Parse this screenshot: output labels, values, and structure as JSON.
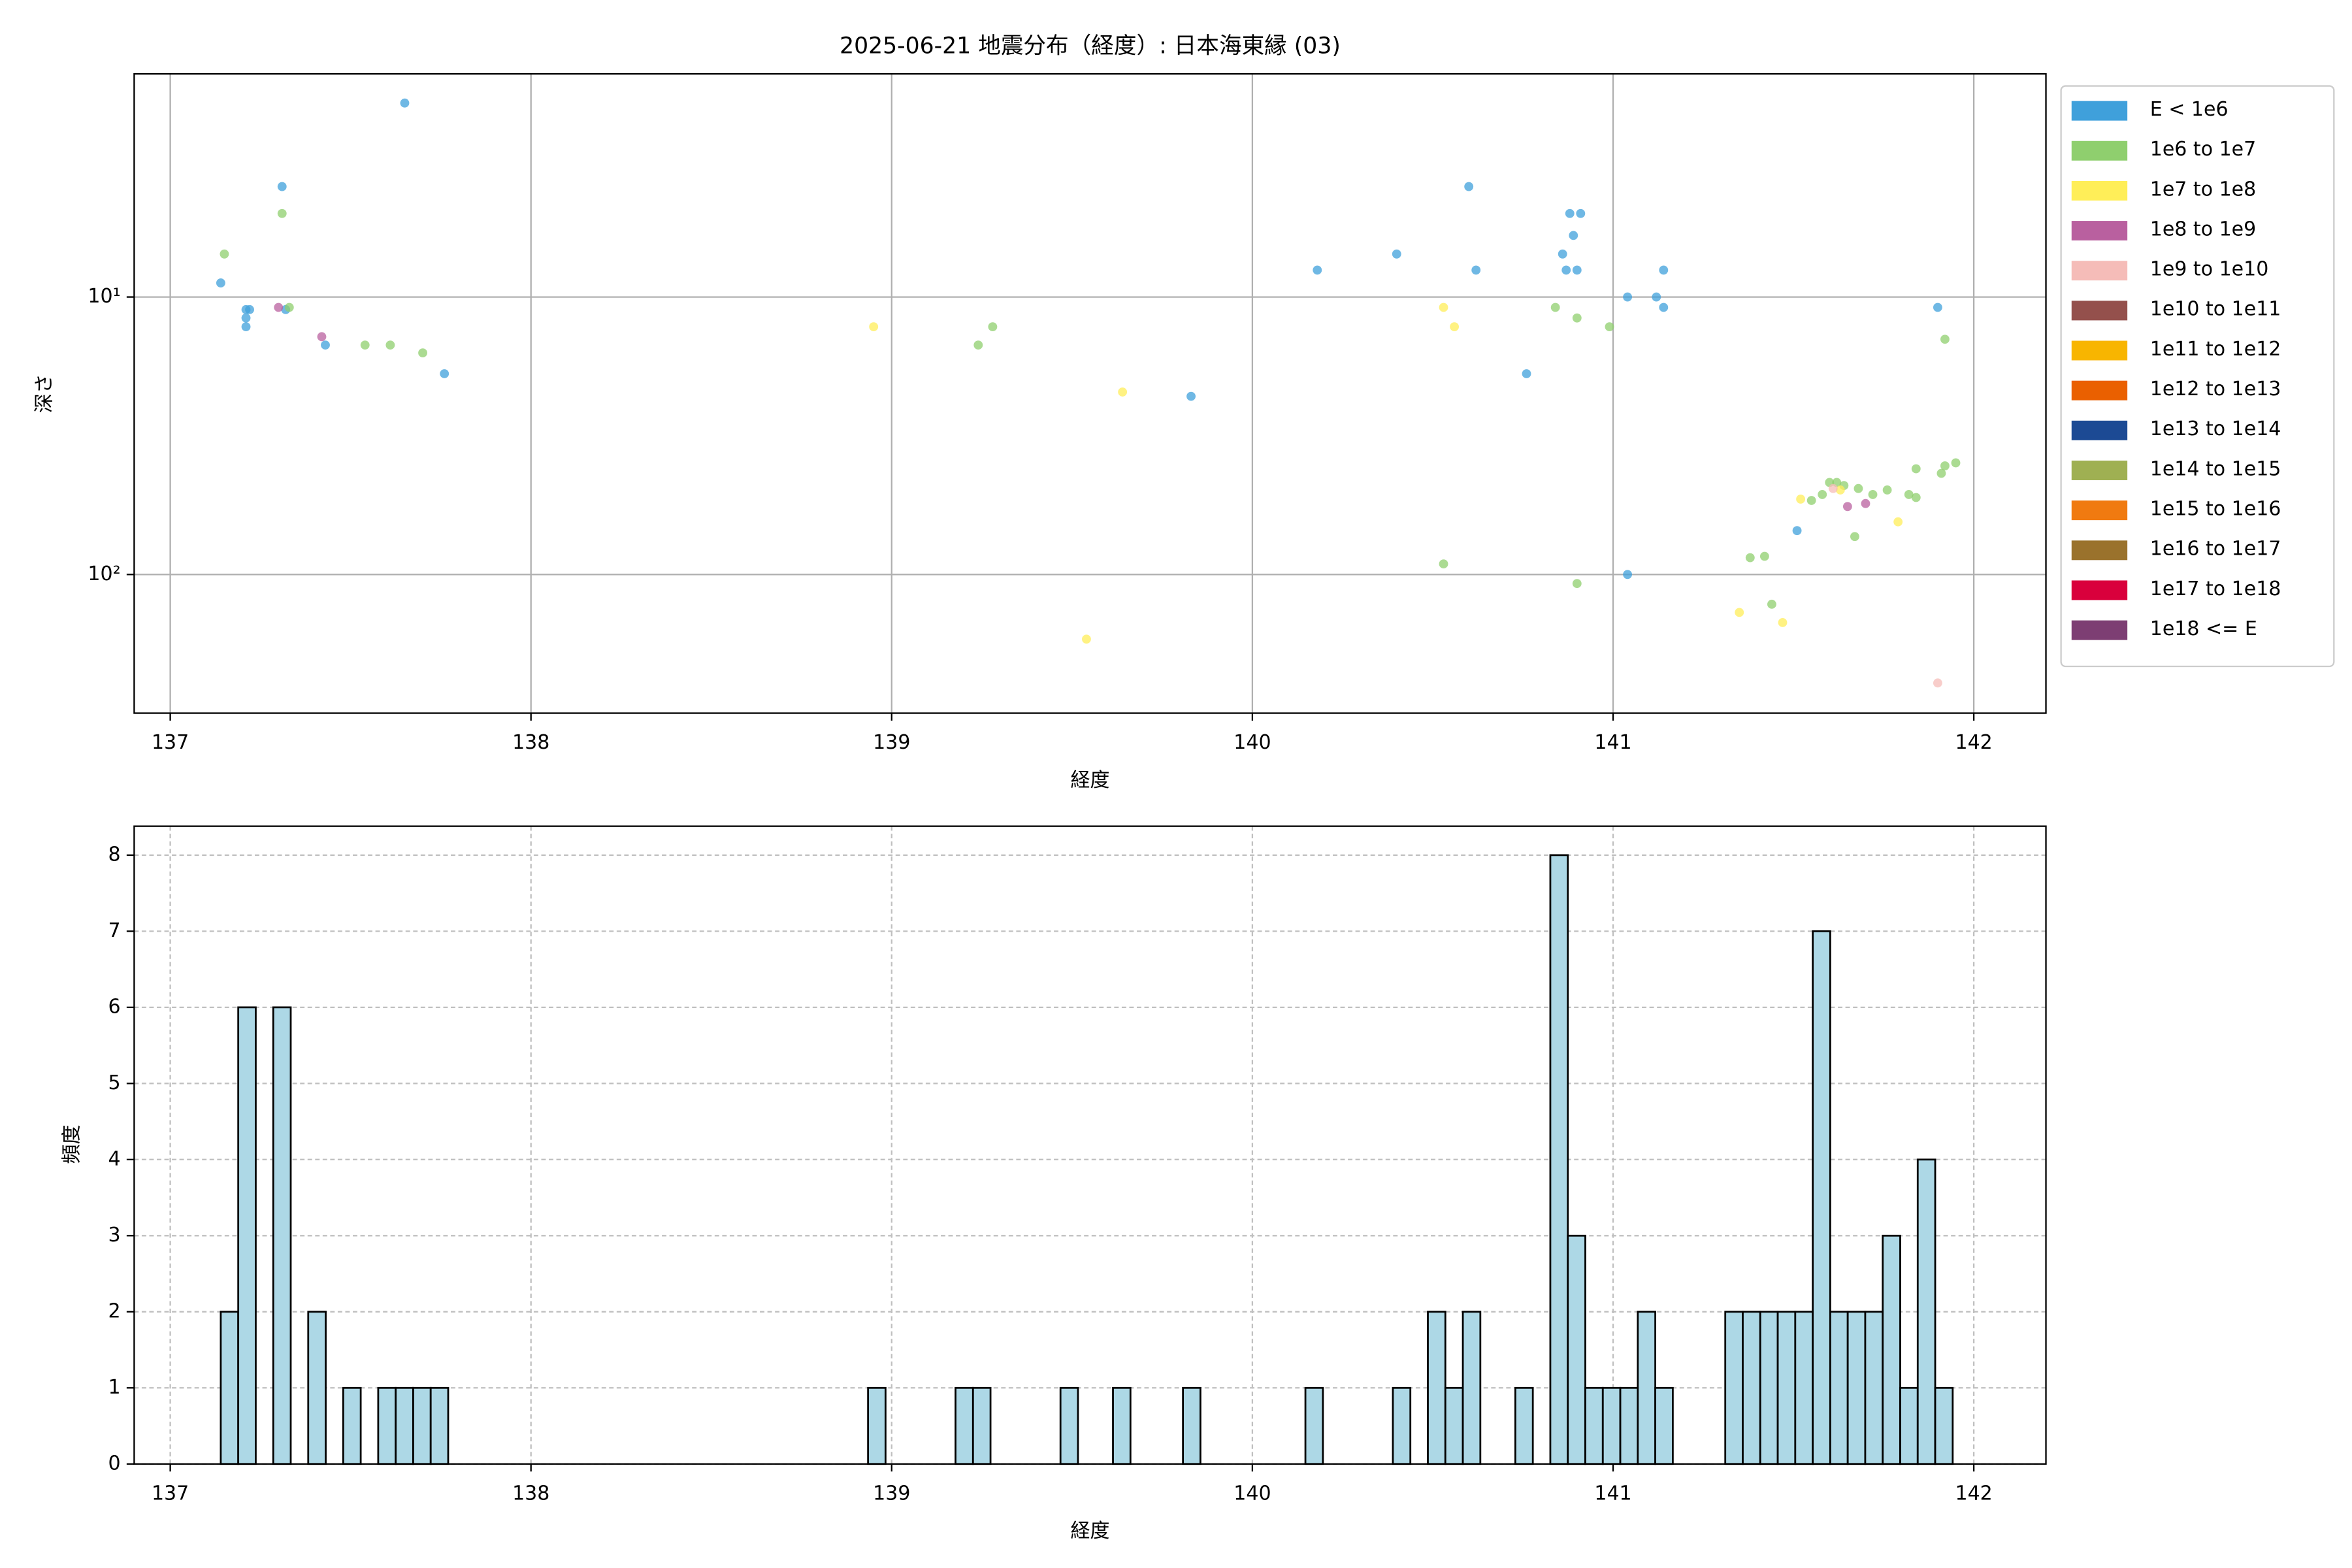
{
  "chart_data": [
    {
      "type": "scatter",
      "title": "2025-06-21 地震分布（経度）: 日本海東縁 (03)",
      "xlabel": "経度",
      "ylabel": "深さ",
      "xlim": [
        136.9,
        142.2
      ],
      "xticks": [
        137,
        138,
        139,
        140,
        141,
        142
      ],
      "yscale": "log",
      "y_inverted": true,
      "ylim": [
        1.57,
        316
      ],
      "yticks": [
        {
          "value": 10,
          "label": "10¹"
        },
        {
          "value": 100,
          "label": "10²"
        }
      ],
      "grid": true,
      "legend": "outside right",
      "series": [
        {
          "name": "E < 1e6",
          "color": "#3fa0db",
          "x": [
            137.14,
            137.21,
            137.21,
            137.21,
            137.22,
            137.31,
            137.32,
            137.43,
            137.65,
            137.76,
            139.83,
            140.18,
            140.4,
            140.6,
            140.62,
            140.76,
            140.86,
            140.87,
            140.9,
            140.89,
            140.88,
            140.91,
            141.04,
            141.04,
            141.12,
            141.14,
            141.14,
            141.51,
            141.9
          ],
          "values": [
            8.9,
            11.1,
            11.9,
            12.8,
            11.1,
            4.0,
            11.1,
            14.9,
            2.0,
            18.9,
            22.8,
            8.0,
            7.0,
            4.0,
            8.0,
            18.9,
            7.0,
            8.0,
            8.0,
            6.0,
            5.0,
            5.0,
            10,
            100,
            10,
            8.0,
            10.9,
            69.5,
            10.9
          ]
        },
        {
          "name": "1e6 to 1e7",
          "color": "#8fcf6e",
          "x": [
            137.15,
            137.31,
            137.33,
            137.54,
            137.61,
            137.7,
            139.24,
            139.28,
            140.53,
            140.84,
            140.9,
            140.9,
            140.99,
            141.38,
            141.42,
            141.44,
            141.55,
            141.58,
            141.6,
            141.62,
            141.64,
            141.68,
            141.72,
            141.67,
            141.76,
            141.82,
            141.84,
            141.84,
            141.91,
            141.92,
            141.95,
            141.92
          ],
          "values": [
            7.0,
            5.0,
            10.9,
            14.9,
            14.9,
            15.9,
            14.9,
            12.8,
            91.6,
            10.9,
            11.9,
            107.8,
            12.8,
            87.0,
            86,
            128,
            54.1,
            51.5,
            46.6,
            46.6,
            47.8,
            49,
            51.5,
            73,
            49.6,
            51.5,
            52.8,
            41.6,
            43.2,
            40.6,
            39.6,
            14.2
          ]
        },
        {
          "name": "1e7 to 1e8",
          "color": "#ffee58",
          "x": [
            138.95,
            139.64,
            139.54,
            140.53,
            140.56,
            141.52,
            141.63,
            141.79,
            141.35,
            141.47
          ],
          "values": [
            12.8,
            22,
            171,
            10.9,
            12.8,
            53.5,
            49.6,
            64.6,
            137,
            149
          ]
        },
        {
          "name": "1e8 to 1e9",
          "color": "#b9609f",
          "x": [
            137.3,
            137.42,
            141.65,
            141.7
          ],
          "values": [
            10.9,
            13.9,
            56.9,
            55.5
          ]
        },
        {
          "name": "1e9 to 1e10",
          "color": "#f5bcb8",
          "x": [
            141.9,
            141.61
          ],
          "values": [
            246,
            49
          ]
        },
        {
          "name": "1e10 to 1e11",
          "color": "#94504c",
          "x": [],
          "values": []
        },
        {
          "name": "1e11 to 1e12",
          "color": "#f8b500",
          "x": [],
          "values": []
        },
        {
          "name": "1e12 to 1e13",
          "color": "#ea6000",
          "x": [],
          "values": []
        },
        {
          "name": "1e13 to 1e14",
          "color": "#1c4a94",
          "x": [],
          "values": []
        },
        {
          "name": "1e14 to 1e15",
          "color": "#9fb052",
          "x": [],
          "values": []
        },
        {
          "name": "1e15 to 1e16",
          "color": "#f07a10",
          "x": [],
          "values": []
        },
        {
          "name": "1e16 to 1e17",
          "color": "#9a722c",
          "x": [],
          "values": []
        },
        {
          "name": "1e17 to 1e18",
          "color": "#d9003c",
          "x": [],
          "values": []
        },
        {
          "name": "1e18 <= E",
          "color": "#7d3e73",
          "x": [],
          "values": []
        }
      ]
    },
    {
      "type": "histogram",
      "xlabel": "経度",
      "ylabel": "頻度",
      "xlim": [
        136.9,
        142.2
      ],
      "xticks": [
        137,
        138,
        139,
        140,
        141,
        142
      ],
      "ylim": [
        0,
        8.38
      ],
      "yticks": [
        0,
        1,
        2,
        3,
        4,
        5,
        6,
        7,
        8
      ],
      "grid": true,
      "grid_style": "dashed",
      "color": "#add8e6",
      "edgecolor": "#000000",
      "bins": [
        137.14,
        137.1885,
        137.237,
        137.2855,
        137.334,
        137.3825,
        137.431,
        137.4795,
        137.528,
        137.5765,
        137.625,
        137.6735,
        137.722,
        137.7705,
        137.819,
        137.8675,
        137.916,
        137.9645,
        138.013,
        138.0615,
        138.11,
        138.1585,
        138.207,
        138.2555,
        138.304,
        138.3525,
        138.401,
        138.4495,
        138.498,
        138.5465,
        138.595,
        138.6435,
        138.692,
        138.7405,
        138.789,
        138.8375,
        138.886,
        138.9345,
        138.983,
        139.0315,
        139.08,
        139.1285,
        139.177,
        139.2255,
        139.274,
        139.3225,
        139.371,
        139.4195,
        139.468,
        139.5165,
        139.565,
        139.6135,
        139.662,
        139.7105,
        139.759,
        139.8075,
        139.856,
        139.9045,
        139.953,
        140.0015,
        140.05,
        140.0985,
        140.147,
        140.1955,
        140.244,
        140.2925,
        140.341,
        140.3895,
        140.438,
        140.4865,
        140.535,
        140.5835,
        140.632,
        140.6805,
        140.729,
        140.7775,
        140.826,
        140.8745,
        140.923,
        140.9715,
        141.02,
        141.0685,
        141.117,
        141.1655,
        141.214,
        141.2625,
        141.311,
        141.3595,
        141.408,
        141.4565,
        141.505,
        141.5535,
        141.602,
        141.6505,
        141.699,
        141.7475,
        141.796,
        141.8445,
        141.893,
        141.9415,
        141.99
      ],
      "counts": [
        2,
        6,
        0,
        6,
        0,
        2,
        0,
        1,
        0,
        1,
        1,
        1,
        1,
        0,
        0,
        0,
        0,
        0,
        0,
        0,
        0,
        0,
        0,
        0,
        0,
        0,
        0,
        0,
        0,
        0,
        0,
        0,
        0,
        0,
        0,
        0,
        0,
        1,
        0,
        0,
        0,
        0,
        1,
        1,
        0,
        0,
        0,
        0,
        1,
        0,
        0,
        1,
        0,
        0,
        0,
        1,
        0,
        0,
        0,
        0,
        0,
        0,
        1,
        0,
        0,
        0,
        0,
        1,
        0,
        2,
        1,
        2,
        0,
        0,
        1,
        0,
        8,
        3,
        1,
        1,
        1,
        2,
        1,
        0,
        0,
        0,
        2,
        2,
        2,
        2,
        2,
        7,
        2,
        2,
        2,
        3,
        1,
        4,
        1,
        0
      ]
    }
  ]
}
